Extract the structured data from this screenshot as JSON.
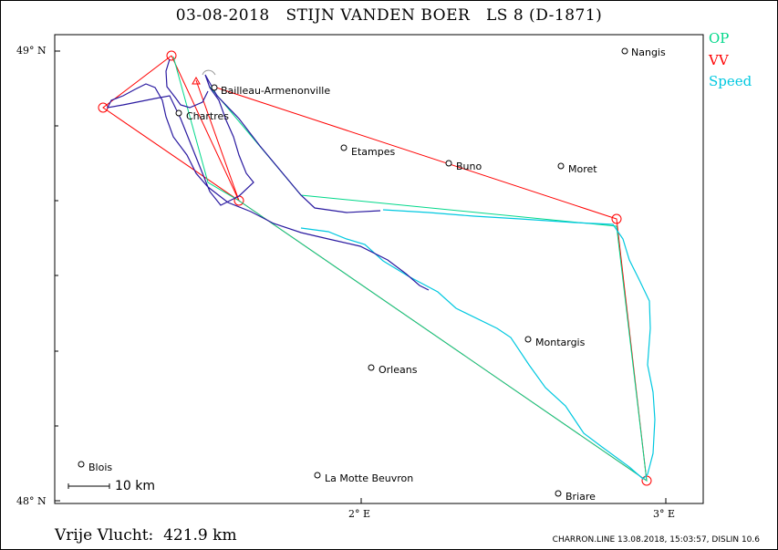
{
  "title": "03-08-2018   STIJN VANDEN BOER   LS 8 (D-1871)",
  "legend": [
    {
      "label": "OP",
      "color": "#00d88a"
    },
    {
      "label": "VV",
      "color": "#ff0000"
    },
    {
      "label": "Speed",
      "color": "#00c8e0"
    }
  ],
  "axes": {
    "lat_top": "49° N",
    "lat_bottom": "48° N",
    "lon_2": "2° E",
    "lon_3": "3° E"
  },
  "places": [
    {
      "name": "Nangis"
    },
    {
      "name": "Bailleau-Armenonville"
    },
    {
      "name": "Chartres"
    },
    {
      "name": "Etampes"
    },
    {
      "name": "Buno"
    },
    {
      "name": "Moret"
    },
    {
      "name": "Montargis"
    },
    {
      "name": "Orleans"
    },
    {
      "name": "Blois"
    },
    {
      "name": "La Motte Beuvron"
    },
    {
      "name": "Briare"
    }
  ],
  "scale_label": "10  km",
  "footer_left": "Vrije Vlucht:  421.9 km",
  "footer_right": "CHARRON.LINE 13.08.2018, 15:03:57, DISLIN 10.6"
}
